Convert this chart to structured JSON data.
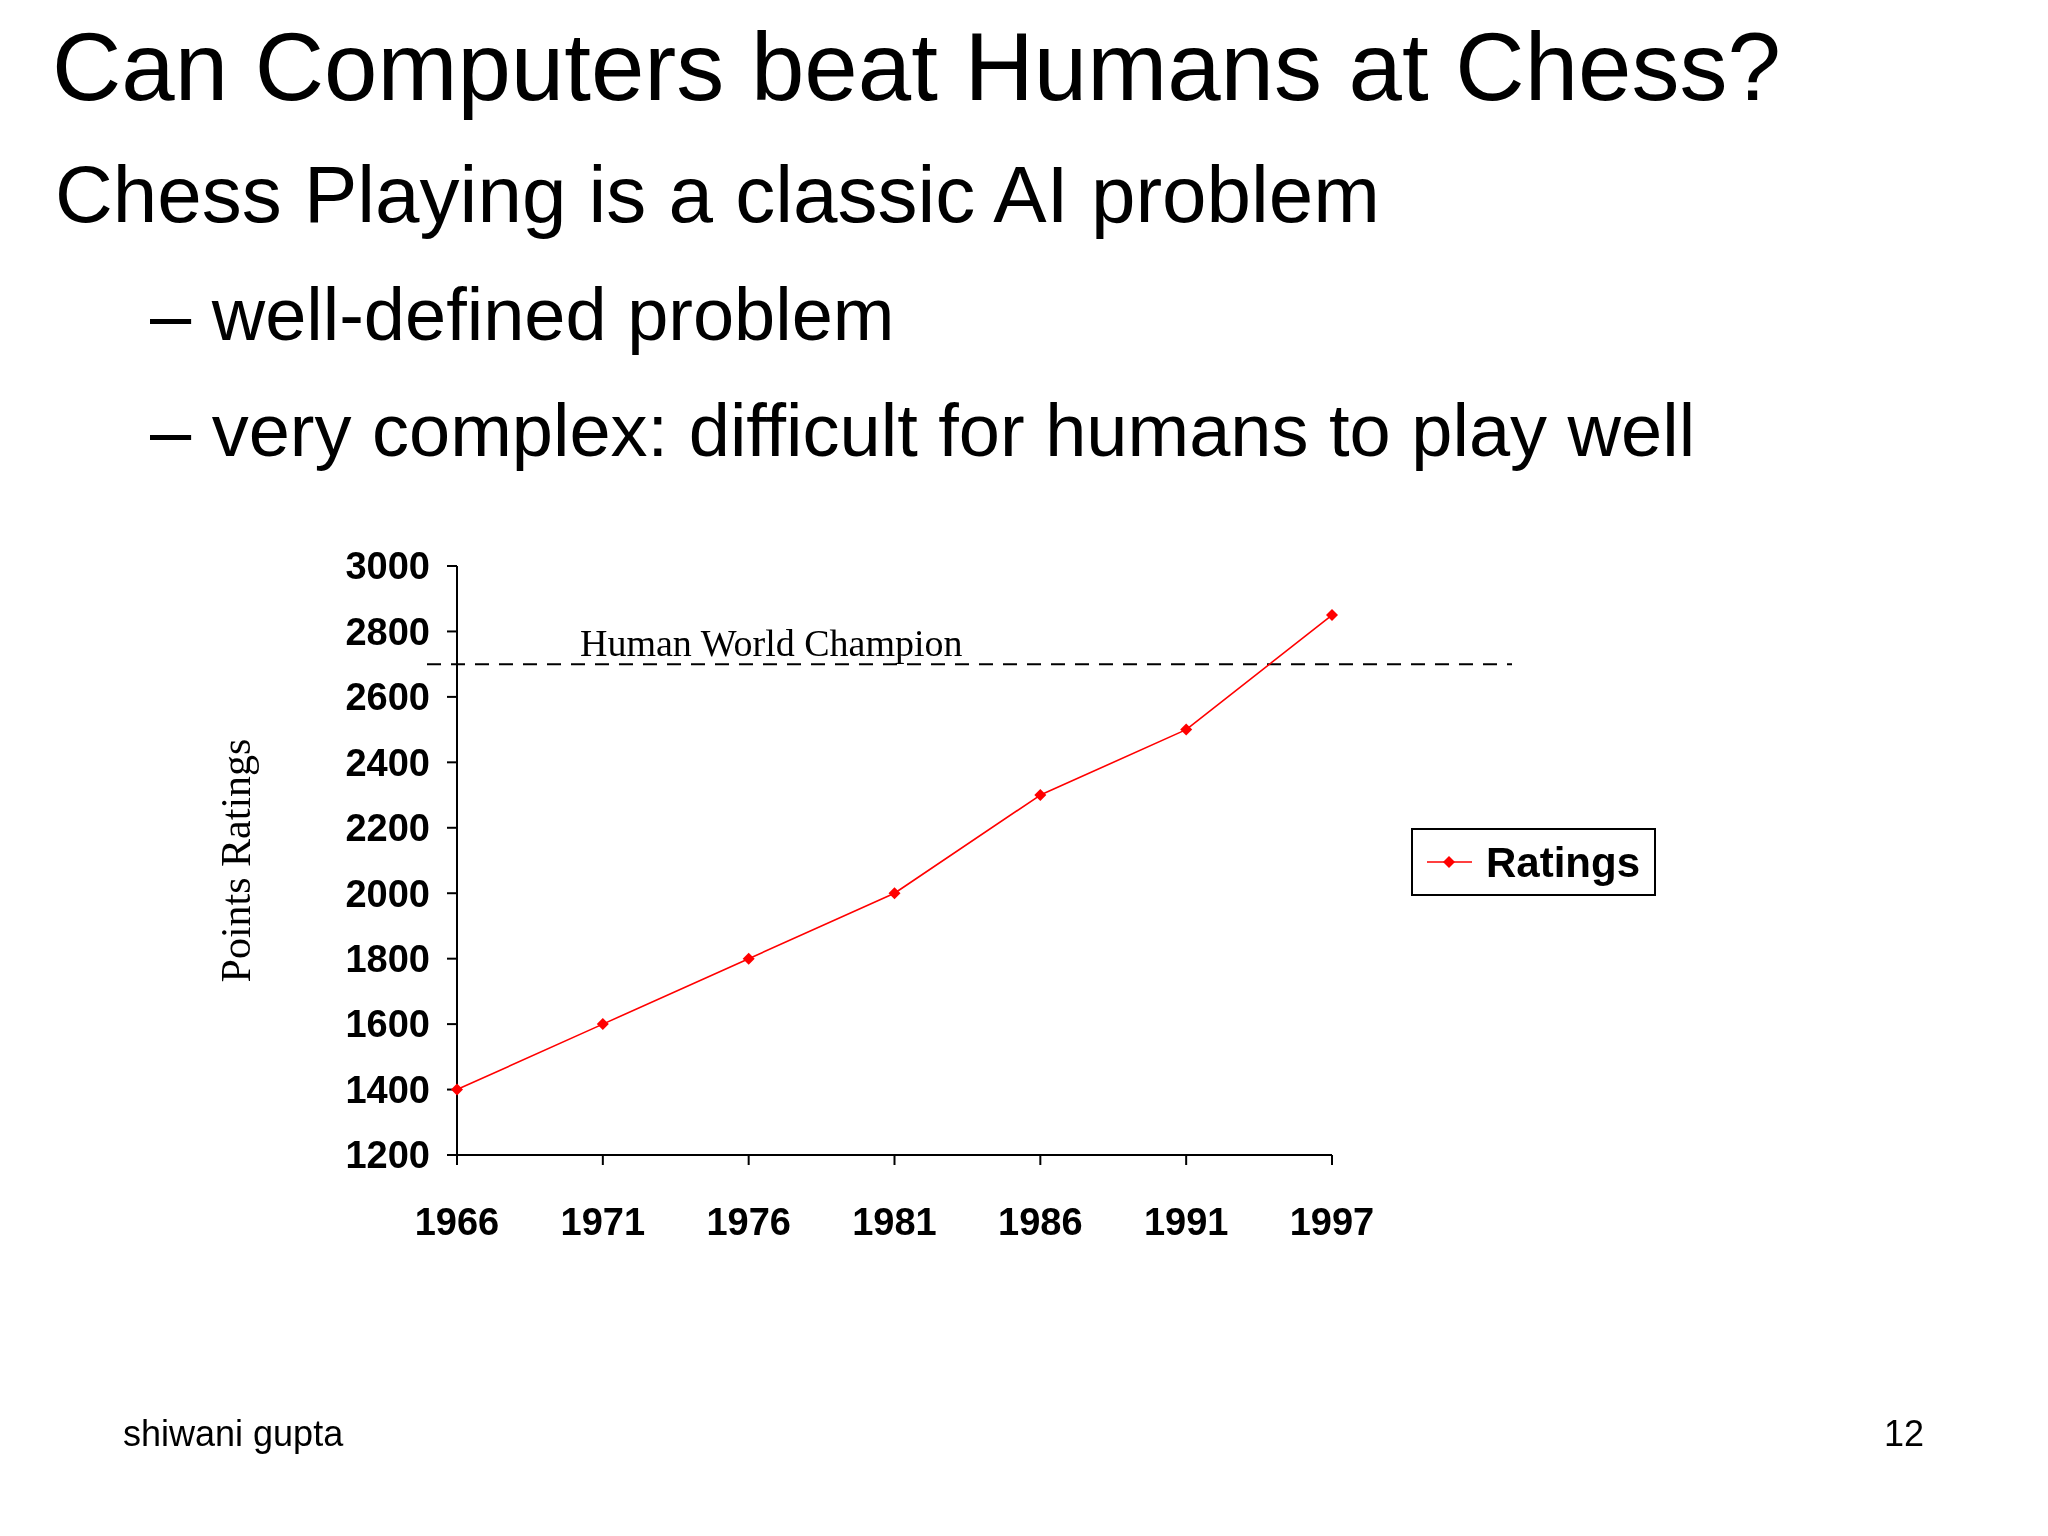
{
  "chart_data": {
    "type": "line",
    "title": "Can Computers beat Humans at Chess?",
    "subtitle": "Chess Playing is a classic AI problem",
    "ylabel": "Points Ratings",
    "annotations": [
      "– well-defined problem",
      "– very complex: difficult for humans to play well",
      "shiwani gupta",
      "12"
    ],
    "categories": [
      "1966",
      "1971",
      "1976",
      "1981",
      "1986",
      "1991",
      "1997"
    ],
    "series": [
      {
        "name": "Ratings",
        "color": "#ff0000",
        "values": [
          1400,
          1600,
          1800,
          2000,
          2300,
          2500,
          2850
        ]
      }
    ],
    "ylim": [
      1200,
      3000
    ],
    "yticks": [
      1200,
      1400,
      1600,
      1800,
      2000,
      2200,
      2400,
      2600,
      2800,
      3000
    ],
    "ref_lines": [
      {
        "axis": "y",
        "value": 2700,
        "label": "Human World Champion",
        "color": "#000000",
        "line_style": "dashed"
      }
    ],
    "grid": false,
    "legend": "right",
    "marker": "diamond",
    "line_style": "solid"
  }
}
